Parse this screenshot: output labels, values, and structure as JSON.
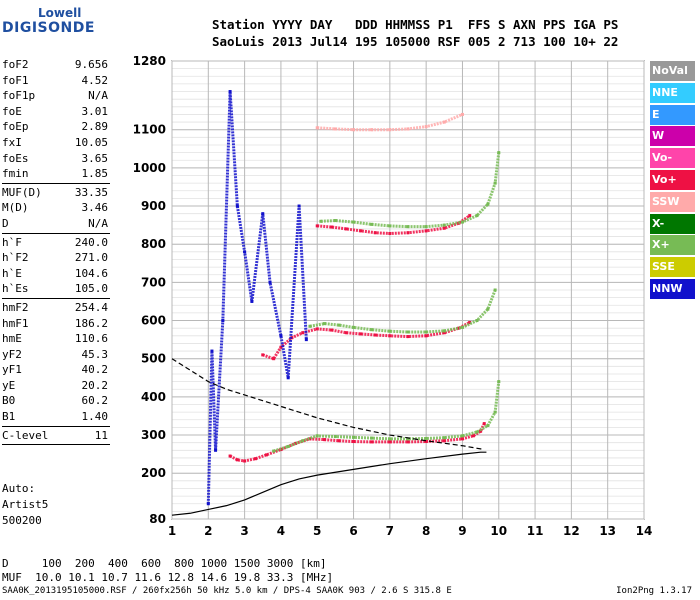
{
  "logo": {
    "top": "Lowell",
    "main": "DIGISONDE"
  },
  "header": {
    "line1": "Station YYYY DAY   DDD HHMMSS P1  FFS S AXN PPS IGA PS",
    "line2": "SaoLuis 2013 Jul14 195 105000 RSF 005 2 713 100 10+ 22"
  },
  "params": [
    {
      "k": "foF2",
      "v": "9.656"
    },
    {
      "k": "foF1",
      "v": "4.52"
    },
    {
      "k": "foF1p",
      "v": "N/A"
    },
    {
      "k": "foE",
      "v": "3.01"
    },
    {
      "k": "foEp",
      "v": "2.89"
    },
    {
      "k": "fxI",
      "v": "10.05"
    },
    {
      "k": "foEs",
      "v": "3.65"
    },
    {
      "k": "fmin",
      "v": "1.85"
    },
    {
      "sep": true
    },
    {
      "k": "MUF(D)",
      "v": "33.35"
    },
    {
      "k": "M(D)",
      "v": "3.46"
    },
    {
      "k": "D",
      "v": "N/A"
    },
    {
      "sep": true
    },
    {
      "k": "h`F",
      "v": "240.0"
    },
    {
      "k": "h`F2",
      "v": "271.0"
    },
    {
      "k": "h`E",
      "v": "104.6"
    },
    {
      "k": "h`Es",
      "v": "105.0"
    },
    {
      "sep": true
    },
    {
      "k": "hmF2",
      "v": "254.4"
    },
    {
      "k": "hmF1",
      "v": "186.2"
    },
    {
      "k": "hmE",
      "v": "110.6"
    },
    {
      "k": "yF2",
      "v": "45.3"
    },
    {
      "k": "yF1",
      "v": "40.2"
    },
    {
      "k": "yE",
      "v": "20.2"
    },
    {
      "k": "B0",
      "v": "60.2"
    },
    {
      "k": "B1",
      "v": "1.40"
    },
    {
      "sep": true
    },
    {
      "k": "C-level",
      "v": "11"
    },
    {
      "sep": true
    }
  ],
  "auto": {
    "line1": "Auto:",
    "line2": "Artist5",
    "line3": "500200"
  },
  "legend": [
    {
      "label": "NoVal",
      "color": "#999999"
    },
    {
      "label": "NNE",
      "color": "#33ccff"
    },
    {
      "label": "E",
      "color": "#3399ff"
    },
    {
      "label": "W",
      "color": "#cc00aa"
    },
    {
      "label": "Vo-",
      "color": "#ff44aa"
    },
    {
      "label": "Vo+",
      "color": "#ee1144"
    },
    {
      "label": "SSW",
      "color": "#ffaaaa"
    },
    {
      "label": "X-",
      "color": "#007700"
    },
    {
      "label": "X+",
      "color": "#77bb55"
    },
    {
      "label": "SSE",
      "color": "#cccc00"
    },
    {
      "label": "NNW",
      "color": "#1111cc"
    }
  ],
  "footer": {
    "line1": "D     100  200  400  600  800 1000 1500 3000 [km]",
    "line2": "MUF  10.0 10.1 10.7 11.6 12.8 14.6 19.8 33.3 [MHz]",
    "source": "SAA0K_2013195105000.RSF / 260fx256h 50 kHz 5.0 km / DPS-4 SAA0K 903 / 2.6 S 315.8 E",
    "version": "Ion2Png 1.3.17"
  },
  "chart_data": {
    "type": "scatter",
    "xlim": [
      1,
      14
    ],
    "ylim": [
      80,
      1280
    ],
    "xticks": [
      1,
      2,
      3,
      4,
      5,
      6,
      7,
      8,
      9,
      10,
      11,
      12,
      13,
      14
    ],
    "yticks": [
      80,
      200,
      300,
      400,
      500,
      600,
      700,
      800,
      900,
      1000,
      1100,
      1280
    ],
    "grid": true,
    "series": [
      {
        "name": "Vo+",
        "x": [
          2.6,
          2.8,
          3.0,
          3.3,
          3.6,
          4.0,
          4.4,
          4.8,
          5.2,
          5.6,
          6.0,
          6.5,
          7.0,
          7.5,
          8.0,
          8.5,
          9.0,
          9.3,
          9.5,
          9.6
        ],
        "y": [
          245,
          235,
          232,
          238,
          248,
          262,
          278,
          290,
          288,
          285,
          283,
          282,
          282,
          282,
          283,
          285,
          290,
          298,
          310,
          330
        ]
      },
      {
        "name": "X+",
        "x": [
          3.8,
          4.2,
          4.6,
          5.0,
          5.5,
          6.0,
          6.5,
          7.0,
          7.5,
          8.0,
          8.5,
          9.0,
          9.4,
          9.7,
          9.9,
          10.0
        ],
        "y": [
          258,
          270,
          285,
          298,
          296,
          294,
          292,
          290,
          290,
          291,
          293,
          298,
          308,
          325,
          360,
          440
        ]
      },
      {
        "name": "Vo+",
        "x": [
          3.5,
          3.8,
          4.0,
          4.3,
          4.6,
          5.0,
          5.4,
          5.8,
          6.2,
          6.6,
          7.0,
          7.5,
          8.0,
          8.5,
          8.9,
          9.2
        ],
        "y": [
          510,
          500,
          530,
          555,
          568,
          578,
          575,
          568,
          565,
          562,
          560,
          558,
          560,
          568,
          580,
          595
        ]
      },
      {
        "name": "X+",
        "x": [
          4.8,
          5.2,
          5.6,
          6.0,
          6.5,
          7.0,
          7.5,
          8.0,
          8.5,
          9.0,
          9.4,
          9.7,
          9.9
        ],
        "y": [
          585,
          592,
          588,
          582,
          576,
          572,
          570,
          570,
          573,
          582,
          600,
          630,
          680
        ]
      },
      {
        "name": "Vo+",
        "x": [
          5.0,
          5.4,
          5.8,
          6.2,
          6.6,
          7.0,
          7.5,
          8.0,
          8.5,
          8.9,
          9.2
        ],
        "y": [
          848,
          845,
          840,
          835,
          830,
          828,
          830,
          835,
          842,
          855,
          875
        ]
      },
      {
        "name": "X+",
        "x": [
          5.1,
          5.5,
          6.0,
          6.5,
          7.0,
          7.5,
          8.0,
          8.5,
          9.0,
          9.4,
          9.7,
          9.9,
          10.0
        ],
        "y": [
          860,
          862,
          858,
          852,
          848,
          846,
          846,
          850,
          858,
          875,
          905,
          960,
          1040
        ]
      },
      {
        "name": "SSW",
        "x": [
          5.0,
          5.5,
          6.0,
          6.5,
          7.0,
          7.5,
          8.0,
          8.5,
          9.0
        ],
        "y": [
          1105,
          1102,
          1100,
          1100,
          1100,
          1102,
          1108,
          1120,
          1140
        ]
      },
      {
        "name": "NNW",
        "x": [
          2.0,
          2.1,
          2.2,
          2.4,
          2.6,
          2.8,
          3.0,
          3.2,
          3.5,
          3.7,
          4.0,
          4.2,
          4.5,
          4.7
        ],
        "y": [
          120,
          520,
          260,
          600,
          1200,
          900,
          780,
          650,
          880,
          700,
          560,
          450,
          900,
          550
        ]
      }
    ],
    "curves": [
      {
        "name": "profile-dashed",
        "x": [
          1.0,
          1.5,
          2.0,
          2.5,
          3.0,
          3.5,
          4.0,
          5.0,
          6.0,
          7.0,
          8.0,
          9.0,
          9.6
        ],
        "y": [
          500,
          470,
          440,
          420,
          405,
          390,
          375,
          345,
          320,
          300,
          285,
          272,
          262
        ]
      },
      {
        "name": "profile-solid",
        "x": [
          1.0,
          1.5,
          2.0,
          2.5,
          3.0,
          3.5,
          4.0,
          4.5,
          5.0,
          6.0,
          7.0,
          8.0,
          9.0,
          9.5,
          9.66
        ],
        "y": [
          90,
          95,
          105,
          115,
          130,
          150,
          170,
          185,
          195,
          210,
          225,
          238,
          250,
          255,
          255
        ]
      }
    ]
  }
}
